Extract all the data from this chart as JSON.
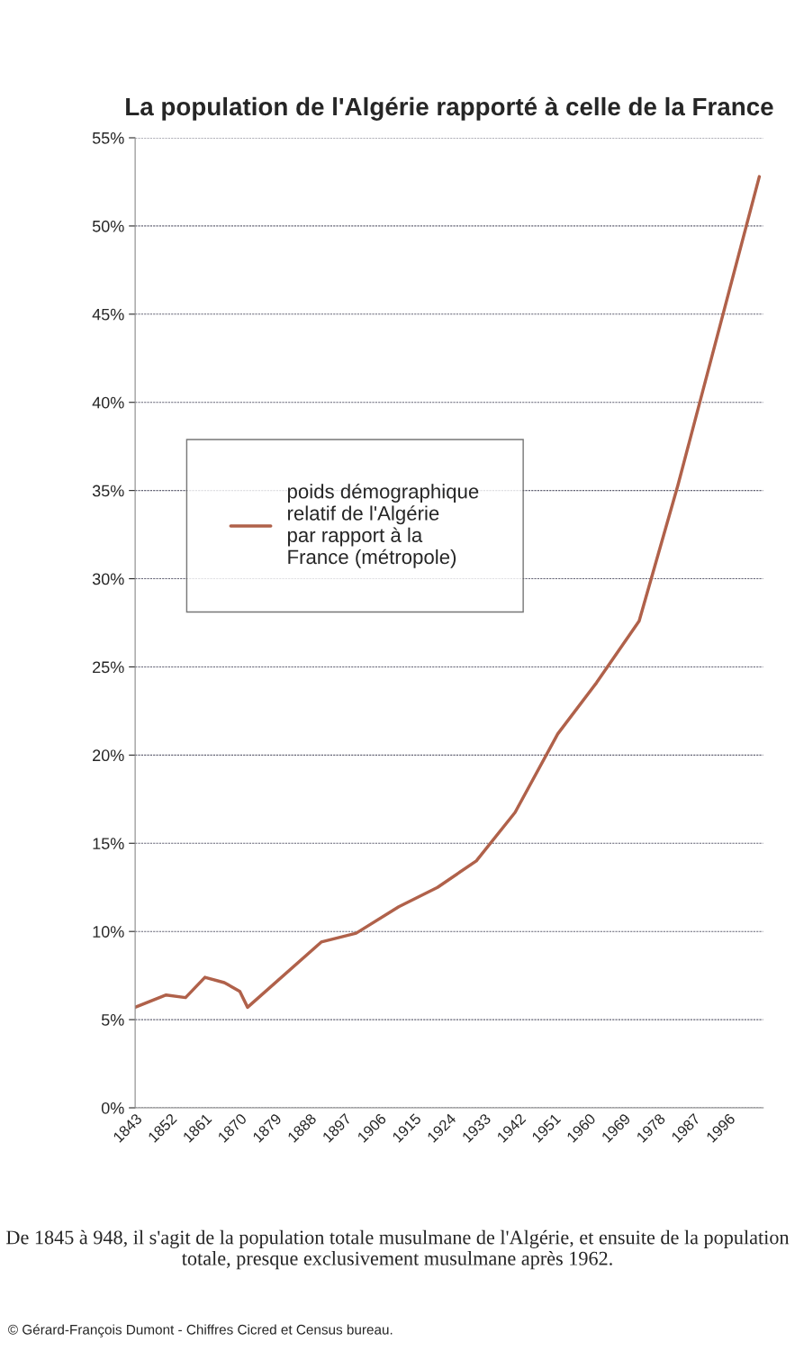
{
  "chart_data": {
    "type": "line",
    "title": "La population de l'Algérie rapporté à celle de la France",
    "x": [
      1843,
      1851,
      1856,
      1861,
      1866,
      1870,
      1872,
      1891,
      1900,
      1911,
      1921,
      1931,
      1941,
      1952,
      1962,
      1973,
      1983,
      2004
    ],
    "series": [
      {
        "name": "poids démographique relatif de l'Algérie par rapport à la France (métropole)",
        "color": "#b0614a",
        "values": [
          5.7,
          6.4,
          6.25,
          7.4,
          7.1,
          6.6,
          5.7,
          9.4,
          9.9,
          11.4,
          12.5,
          14.0,
          16.75,
          21.2,
          24.1,
          27.6,
          35.3,
          52.8
        ]
      }
    ],
    "xlim": [
      1843,
      2005
    ],
    "xticks": [
      1843,
      1852,
      1861,
      1870,
      1879,
      1888,
      1897,
      1906,
      1915,
      1924,
      1933,
      1942,
      1951,
      1960,
      1969,
      1978,
      1987,
      1996
    ],
    "ylim": [
      0,
      55
    ],
    "yticks": [
      {
        "value": 0,
        "label": "0%"
      },
      {
        "value": 5,
        "label": "5%"
      },
      {
        "value": 10,
        "label": "10%"
      },
      {
        "value": 15,
        "label": "15%"
      },
      {
        "value": 20,
        "label": "20%"
      },
      {
        "value": 25,
        "label": "25%"
      },
      {
        "value": 30,
        "label": "30%"
      },
      {
        "value": 35,
        "label": "35%"
      },
      {
        "value": 40,
        "label": "40%"
      },
      {
        "value": 45,
        "label": "45%"
      },
      {
        "value": 50,
        "label": "50%"
      },
      {
        "value": 55,
        "label": "55%"
      }
    ],
    "grid": "y",
    "legend": "center",
    "marker": "none",
    "line_style": "solid",
    "annotations": [
      "De 1845 à 948, il s'agit de la population totale musulmane de l'Algérie, et ensuite de la population totale, presque exclusivement musulmane après 1962.",
      "© Gérard-François Dumont - Chiffres Cicred et Census bureau."
    ]
  }
}
